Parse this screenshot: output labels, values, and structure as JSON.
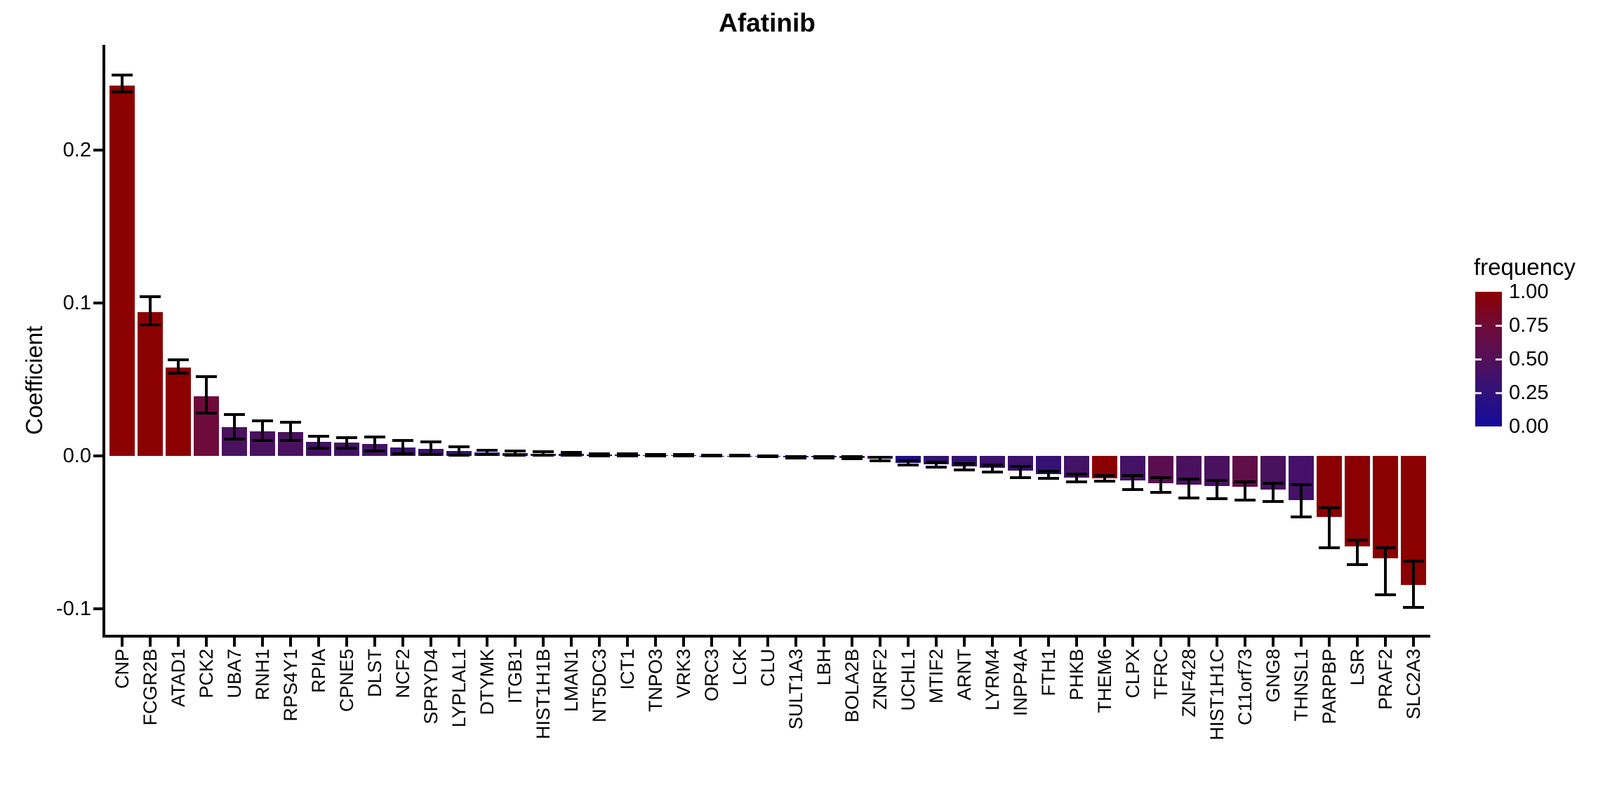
{
  "header": {
    "title": "Afatinib"
  },
  "chart_data": {
    "type": "bar",
    "title": "Afatinib",
    "xlabel": "",
    "ylabel": "Coefficient",
    "grid": false,
    "orientation": "vertical",
    "bar_color_encoding": "frequency (0=dark blue, 1=dark red)",
    "error_bars": true,
    "ylim": [
      -0.117,
      0.268
    ],
    "y_ticks": [
      0.2,
      0.1,
      0.0,
      -0.1
    ],
    "y_tick_labels": [
      "0.2",
      "0.1",
      "0.0",
      "-0.1"
    ],
    "legend": {
      "title": "frequency",
      "position": "right",
      "labels": [
        "1.00",
        "0.75",
        "0.50",
        "0.25",
        "0.00"
      ],
      "gradient_stops": [
        "#8B0000",
        "#6F0A37",
        "#531058",
        "#2F127B",
        "#140A9B"
      ]
    },
    "categories": [
      "CNP",
      "FCGR2B",
      "ATAD1",
      "PCK2",
      "UBA7",
      "RNH1",
      "RPS4Y1",
      "RPIA",
      "CPNE5",
      "DLST",
      "NCF2",
      "SPRYD4",
      "LYPLAL1",
      "DTYMK",
      "ITGB1",
      "HIST1H1B",
      "LMAN1",
      "NT5DC3",
      "ICT1",
      "TNPO3",
      "VRK3",
      "ORC3",
      "LCK",
      "CLU",
      "SULT1A3",
      "LBH",
      "BOLA2B",
      "ZNRF2",
      "UCHL1",
      "MTIF2",
      "ARNT",
      "LYRM4",
      "INPP4A",
      "FTH1",
      "PHKB",
      "THEM6",
      "CLPX",
      "TFRC",
      "ZNF428",
      "HIST1H1C",
      "C11orf73",
      "GNG8",
      "THNSL1",
      "PARPBP",
      "LSR",
      "PRAF2",
      "SLC2A3"
    ],
    "points": [
      {
        "gene": "CNP",
        "coefficient": 0.242,
        "err_low": 0.238,
        "err_high": 0.249,
        "frequency": 1.0,
        "color": "#8B0000"
      },
      {
        "gene": "FCGR2B",
        "coefficient": 0.094,
        "err_low": 0.086,
        "err_high": 0.104,
        "frequency": 1.0,
        "color": "#8B0000"
      },
      {
        "gene": "ATAD1",
        "coefficient": 0.058,
        "err_low": 0.054,
        "err_high": 0.063,
        "frequency": 1.0,
        "color": "#8B0000"
      },
      {
        "gene": "PCK2",
        "coefficient": 0.039,
        "err_low": 0.028,
        "err_high": 0.052,
        "frequency": 0.75,
        "color": "#6E0B3A"
      },
      {
        "gene": "UBA7",
        "coefficient": 0.019,
        "err_low": 0.011,
        "err_high": 0.027,
        "frequency": 0.5,
        "color": "#4A115E"
      },
      {
        "gene": "RNH1",
        "coefficient": 0.016,
        "err_low": 0.01,
        "err_high": 0.023,
        "frequency": 0.5,
        "color": "#4A115E"
      },
      {
        "gene": "RPS4Y1",
        "coefficient": 0.0155,
        "err_low": 0.01,
        "err_high": 0.022,
        "frequency": 0.5,
        "color": "#4A115E"
      },
      {
        "gene": "RPIA",
        "coefficient": 0.009,
        "err_low": 0.005,
        "err_high": 0.013,
        "frequency": 0.45,
        "color": "#431265"
      },
      {
        "gene": "CPNE5",
        "coefficient": 0.0085,
        "err_low": 0.005,
        "err_high": 0.012,
        "frequency": 0.45,
        "color": "#431265"
      },
      {
        "gene": "DLST",
        "coefficient": 0.0078,
        "err_low": 0.003,
        "err_high": 0.0125,
        "frequency": 0.45,
        "color": "#431265"
      },
      {
        "gene": "NCF2",
        "coefficient": 0.0056,
        "err_low": 0.0015,
        "err_high": 0.01,
        "frequency": 0.4,
        "color": "#3B126C"
      },
      {
        "gene": "SPRYD4",
        "coefficient": 0.0047,
        "err_low": 0.001,
        "err_high": 0.009,
        "frequency": 0.4,
        "color": "#3B126C"
      },
      {
        "gene": "LYPLAL1",
        "coefficient": 0.0033,
        "err_low": 0.0005,
        "err_high": 0.006,
        "frequency": 0.35,
        "color": "#331273"
      },
      {
        "gene": "DTYMK",
        "coefficient": 0.0023,
        "err_low": 0.0009,
        "err_high": 0.0037,
        "frequency": 0.3,
        "color": "#2A117A"
      },
      {
        "gene": "ITGB1",
        "coefficient": 0.0018,
        "err_low": 0.0006,
        "err_high": 0.003,
        "frequency": 0.3,
        "color": "#2A117A"
      },
      {
        "gene": "HIST1H1B",
        "coefficient": 0.0015,
        "err_low": 0.0004,
        "err_high": 0.0026,
        "frequency": 0.3,
        "color": "#2A117A"
      },
      {
        "gene": "LMAN1",
        "coefficient": 0.0013,
        "err_low": 0.0004,
        "err_high": 0.0022,
        "frequency": 0.25,
        "color": "#1F0F82"
      },
      {
        "gene": "NT5DC3",
        "coefficient": 0.0009,
        "err_low": 0.0002,
        "err_high": 0.0016,
        "frequency": 0.25,
        "color": "#1F0F82"
      },
      {
        "gene": "ICT1",
        "coefficient": 0.0007,
        "err_low": 0.0001,
        "err_high": 0.0013,
        "frequency": 0.25,
        "color": "#1F0F82"
      },
      {
        "gene": "TNPO3",
        "coefficient": 0.0005,
        "err_low": 0.0,
        "err_high": 0.001,
        "frequency": 0.25,
        "color": "#1F0F82"
      },
      {
        "gene": "VRK3",
        "coefficient": 0.0004,
        "err_low": 0.0,
        "err_high": 0.0008,
        "frequency": 0.25,
        "color": "#1F0F82"
      },
      {
        "gene": "ORC3",
        "coefficient": 0.0002,
        "err_low": -0.0001,
        "err_high": 0.0005,
        "frequency": 0.25,
        "color": "#1F0F82"
      },
      {
        "gene": "LCK",
        "coefficient": 0.0001,
        "err_low": -0.0002,
        "err_high": 0.0004,
        "frequency": 0.25,
        "color": "#1F0F82"
      },
      {
        "gene": "CLU",
        "coefficient": -0.0002,
        "err_low": -0.0005,
        "err_high": 0.0001,
        "frequency": 0.25,
        "color": "#1F0F82"
      },
      {
        "gene": "SULT1A3",
        "coefficient": -0.0008,
        "err_low": -0.0014,
        "err_high": -0.0003,
        "frequency": 0.25,
        "color": "#1F0F82"
      },
      {
        "gene": "LBH",
        "coefficient": -0.001,
        "err_low": -0.0016,
        "err_high": -0.0004,
        "frequency": 0.25,
        "color": "#1F0F82"
      },
      {
        "gene": "BOLA2B",
        "coefficient": -0.0013,
        "err_low": -0.002,
        "err_high": -0.0006,
        "frequency": 0.6,
        "color": "#590F4F"
      },
      {
        "gene": "ZNRF2",
        "coefficient": -0.002,
        "err_low": -0.0032,
        "err_high": -0.001,
        "frequency": 0.3,
        "color": "#2A117A"
      },
      {
        "gene": "UCHL1",
        "coefficient": -0.0045,
        "err_low": -0.006,
        "err_high": -0.003,
        "frequency": 0.25,
        "color": "#1F0F82"
      },
      {
        "gene": "MTIF2",
        "coefficient": -0.0055,
        "err_low": -0.0075,
        "err_high": -0.004,
        "frequency": 0.35,
        "color": "#331273"
      },
      {
        "gene": "ARNT",
        "coefficient": -0.007,
        "err_low": -0.009,
        "err_high": -0.005,
        "frequency": 0.35,
        "color": "#331273"
      },
      {
        "gene": "LYRM4",
        "coefficient": -0.008,
        "err_low": -0.0105,
        "err_high": -0.006,
        "frequency": 0.4,
        "color": "#3B126C"
      },
      {
        "gene": "INPP4A",
        "coefficient": -0.0095,
        "err_low": -0.014,
        "err_high": -0.007,
        "frequency": 0.4,
        "color": "#3B126C"
      },
      {
        "gene": "FTH1",
        "coefficient": -0.012,
        "err_low": -0.0145,
        "err_high": -0.01,
        "frequency": 0.35,
        "color": "#331273"
      },
      {
        "gene": "PHKB",
        "coefficient": -0.014,
        "err_low": -0.017,
        "err_high": -0.012,
        "frequency": 0.45,
        "color": "#431265"
      },
      {
        "gene": "THEM6",
        "coefficient": -0.0145,
        "err_low": -0.0165,
        "err_high": -0.013,
        "frequency": 1.0,
        "color": "#8B0000"
      },
      {
        "gene": "CLPX",
        "coefficient": -0.016,
        "err_low": -0.022,
        "err_high": -0.013,
        "frequency": 0.45,
        "color": "#431265"
      },
      {
        "gene": "TFRC",
        "coefficient": -0.018,
        "err_low": -0.024,
        "err_high": -0.014,
        "frequency": 0.6,
        "color": "#590F4F"
      },
      {
        "gene": "ZNF428",
        "coefficient": -0.019,
        "err_low": -0.0275,
        "err_high": -0.015,
        "frequency": 0.5,
        "color": "#4A115E"
      },
      {
        "gene": "HIST1H1C",
        "coefficient": -0.0195,
        "err_low": -0.028,
        "err_high": -0.016,
        "frequency": 0.5,
        "color": "#4A115E"
      },
      {
        "gene": "C11orf73",
        "coefficient": -0.02,
        "err_low": -0.029,
        "err_high": -0.017,
        "frequency": 0.65,
        "color": "#600E48"
      },
      {
        "gene": "GNG8",
        "coefficient": -0.022,
        "err_low": -0.03,
        "err_high": -0.018,
        "frequency": 0.5,
        "color": "#4A115E"
      },
      {
        "gene": "THNSL1",
        "coefficient": -0.029,
        "err_low": -0.04,
        "err_high": -0.019,
        "frequency": 0.45,
        "color": "#44106A"
      },
      {
        "gene": "PARPBP",
        "coefficient": -0.04,
        "err_low": -0.06,
        "err_high": -0.034,
        "frequency": 1.0,
        "color": "#8B0000"
      },
      {
        "gene": "LSR",
        "coefficient": -0.059,
        "err_low": -0.071,
        "err_high": -0.055,
        "frequency": 1.0,
        "color": "#8B0000"
      },
      {
        "gene": "PRAF2",
        "coefficient": -0.067,
        "err_low": -0.091,
        "err_high": -0.06,
        "frequency": 1.0,
        "color": "#8B0000"
      },
      {
        "gene": "SLC2A3",
        "coefficient": -0.0845,
        "err_low": -0.099,
        "err_high": -0.069,
        "frequency": 1.0,
        "color": "#8B0000"
      }
    ]
  }
}
